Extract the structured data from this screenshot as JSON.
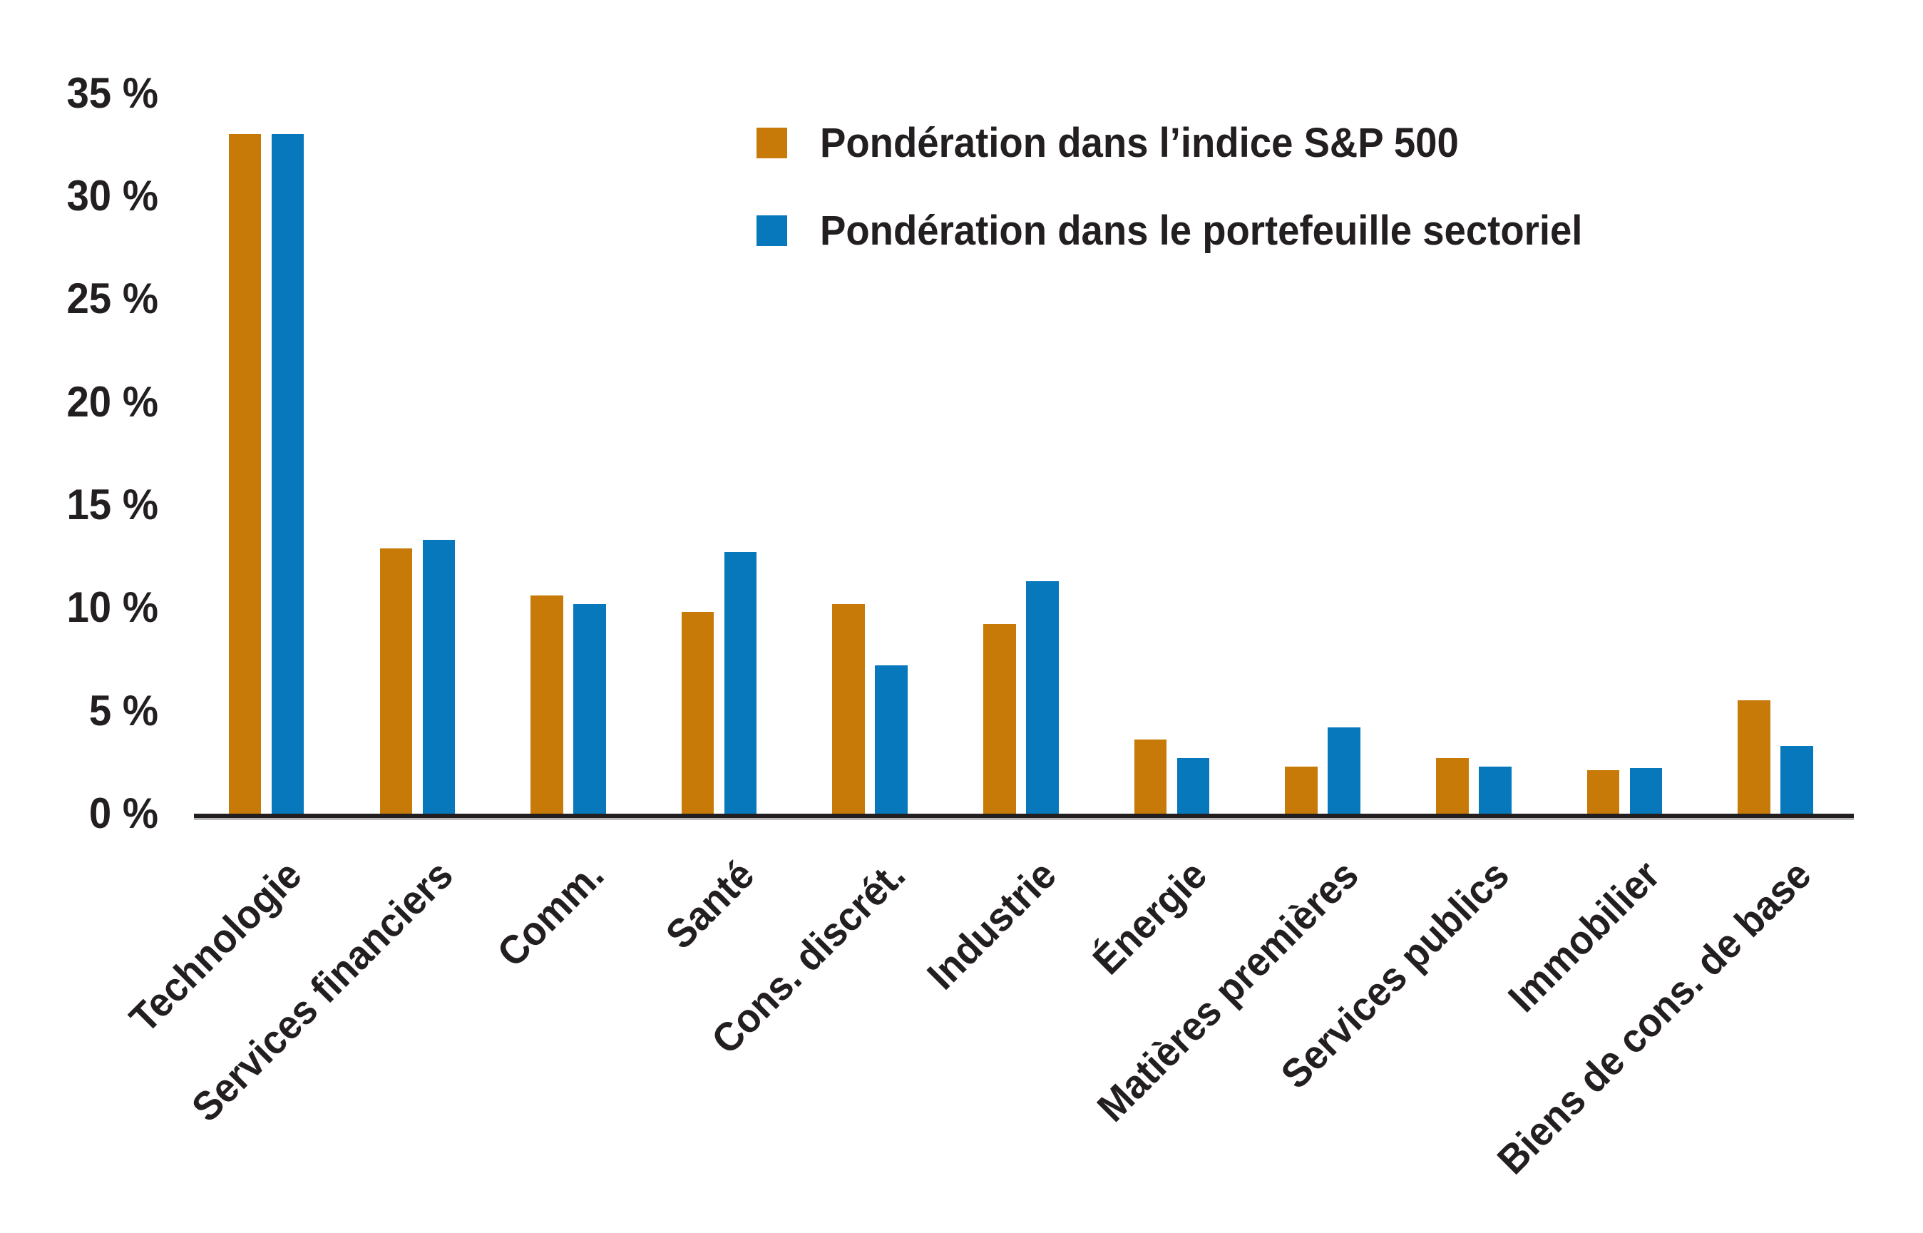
{
  "chart_data": {
    "type": "bar",
    "title": "",
    "categories": [
      "Technologie",
      "Services financiers",
      "Comm.",
      "Santé",
      "Cons. discrét.",
      "Industrie",
      "Énergie",
      "Matières premières",
      "Services publics",
      "Immobilier",
      "Biens de cons. de base"
    ],
    "series": [
      {
        "name": "Pondération dans l’indice S&P 500",
        "color": "#C87A08",
        "values": [
          33.0,
          12.9,
          10.6,
          9.8,
          10.2,
          9.2,
          3.6,
          2.3,
          2.7,
          2.1,
          5.5
        ]
      },
      {
        "name": "Pondération dans le portefeuille sectoriel",
        "color": "#0778BC",
        "values": [
          33.0,
          13.3,
          10.2,
          12.7,
          7.2,
          11.3,
          2.7,
          4.2,
          2.3,
          2.2,
          3.3
        ]
      }
    ],
    "ylim": [
      0,
      35
    ],
    "ytick_values": [
      0,
      5,
      10,
      15,
      20,
      25,
      30,
      35
    ],
    "ytick_labels": [
      "0 %",
      "5 %",
      "10 %",
      "15 %",
      "20 %",
      "25 %",
      "30 %",
      "35 %"
    ],
    "grid": false,
    "legend_position": "top-right",
    "axis_color": "#231F20",
    "text_color": "#231F20",
    "background_color": "#FFFFFF"
  }
}
